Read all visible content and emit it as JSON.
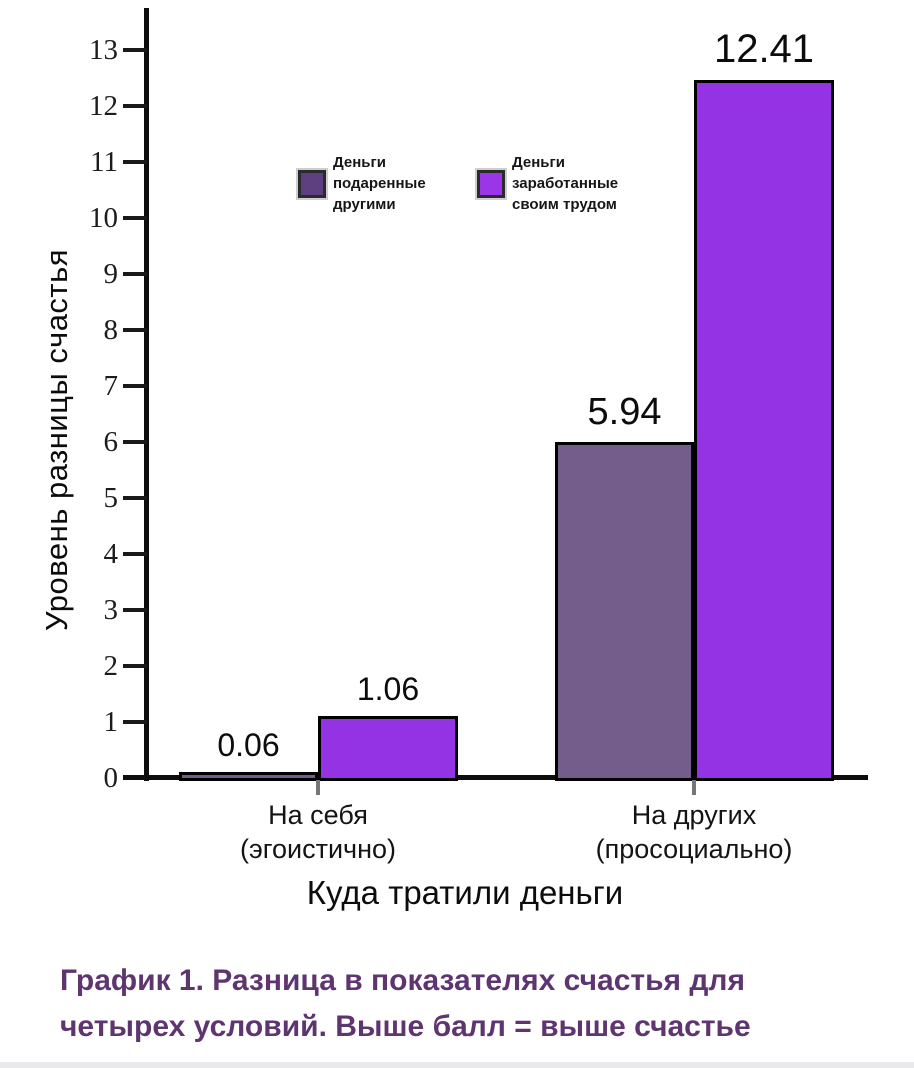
{
  "figure": {
    "caption_lines": [
      "График 1. Разница в показателях счастья для",
      "четырех условий. Выше балл = выше счастье"
    ],
    "caption_color": "#5e3570"
  },
  "chart_data": {
    "type": "bar",
    "title": "",
    "xlabel": "Куда тратили деньги",
    "ylabel": "Уровень разницы счастья",
    "ylim": [
      0,
      13
    ],
    "ytick_step": 1,
    "grid": false,
    "legend_position": "top-center-inside",
    "axis_color": "#0d0d0d",
    "categories": [
      {
        "lines": [
          "На себя",
          "(эгоистично)"
        ]
      },
      {
        "lines": [
          "На других",
          "(просоциально)"
        ]
      }
    ],
    "series": [
      {
        "name": "Деньги подаренные другими",
        "legend_label": "Деньги\nподаренные\nдругими",
        "color": "#745d8a",
        "legend_color": "#5e3f80",
        "values": [
          0.06,
          5.94
        ],
        "labels": [
          "0.06",
          "5.94"
        ]
      },
      {
        "name": "Деньги заработанные своим трудом",
        "legend_label": "Деньги\nзаработанные\nсвоим трудом",
        "color": "#9333e3",
        "legend_color": "#9a35e8",
        "values": [
          1.06,
          12.41
        ],
        "labels": [
          "1.06",
          "12.41"
        ]
      }
    ]
  }
}
